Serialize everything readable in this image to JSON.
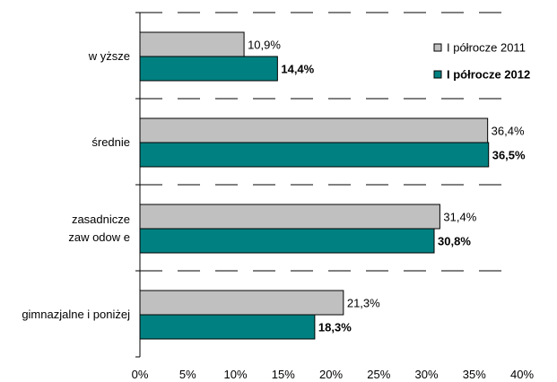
{
  "chart_data": {
    "type": "bar",
    "orientation": "horizontal",
    "categories": [
      "wyższe",
      "średnie",
      "zasadnicze zawodowe",
      "gimnazjalne i poniżej"
    ],
    "category_lines": [
      [
        "w yższe"
      ],
      [
        "średnie"
      ],
      [
        "zasadnicze",
        "zaw odow e"
      ],
      [
        "gimnazjalne i poniżej"
      ]
    ],
    "series": [
      {
        "name": "I półrocze 2011",
        "values": [
          10.9,
          36.4,
          31.4,
          21.3
        ],
        "labels": [
          "10,9%",
          "36,4%",
          "31,4%",
          "21,3%"
        ],
        "color": "#c0c0c0",
        "bold": false
      },
      {
        "name": "I półrocze 2012",
        "values": [
          14.4,
          36.5,
          30.8,
          18.3
        ],
        "labels": [
          "14,4%",
          "36,5%",
          "30,8%",
          "18,3%"
        ],
        "color": "#008080",
        "bold": true
      }
    ],
    "xlim": [
      0,
      40
    ],
    "xticks": [
      0,
      5,
      10,
      15,
      20,
      25,
      30,
      35,
      40
    ],
    "xtick_labels": [
      "0%",
      "5%",
      "10%",
      "15%",
      "20%",
      "25%",
      "30%",
      "35%",
      "40%"
    ],
    "grid": "horizontal dashed separators",
    "legend_position": "top-right",
    "title": "",
    "xlabel": "",
    "ylabel": ""
  }
}
